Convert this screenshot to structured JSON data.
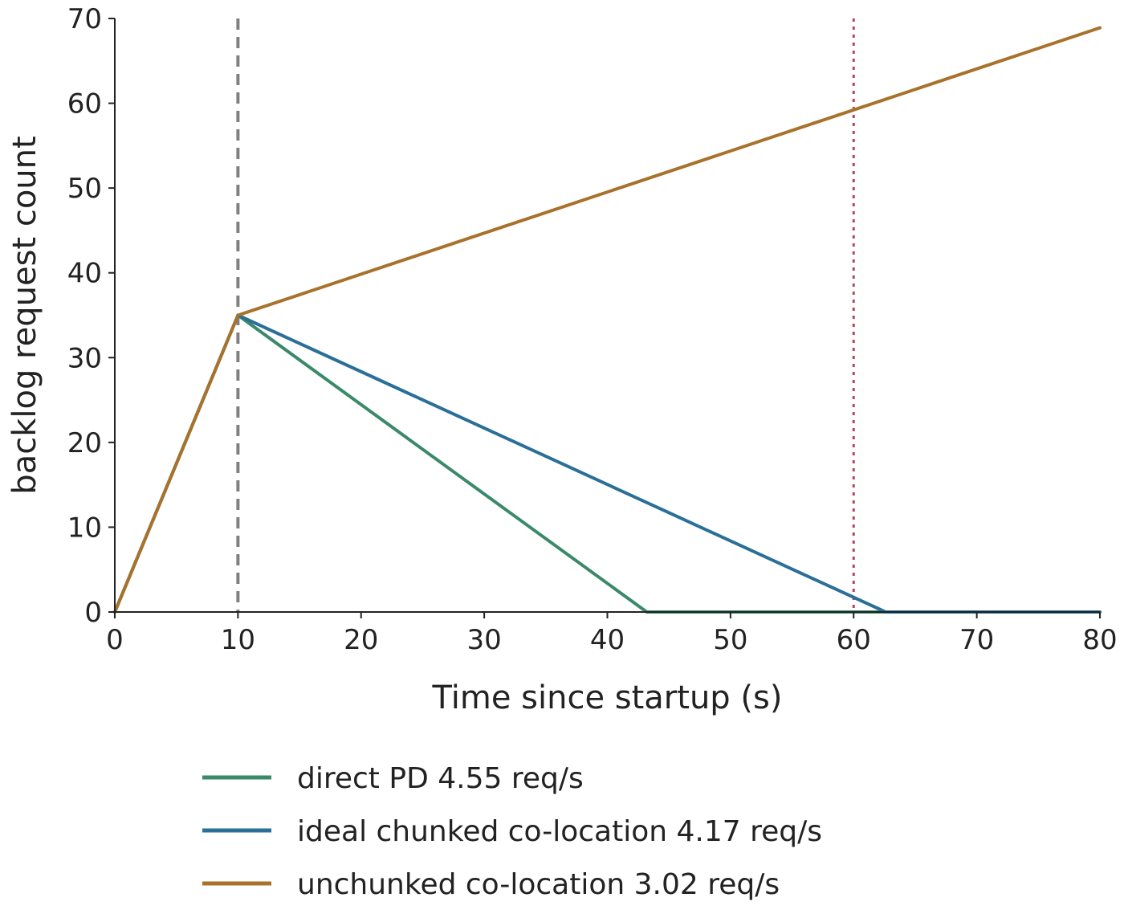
{
  "chart_data": {
    "type": "line",
    "title": "",
    "xlabel": "Time since startup (s)",
    "ylabel": "backlog request count",
    "xlim": [
      0,
      80
    ],
    "ylim": [
      0,
      70
    ],
    "xticks": [
      0,
      10,
      20,
      30,
      40,
      50,
      60,
      70,
      80
    ],
    "yticks": [
      0,
      10,
      20,
      30,
      40,
      50,
      60,
      70
    ],
    "grid": false,
    "legend_position": "bottom",
    "vlines": [
      {
        "x": 10,
        "style": "dashed",
        "color": "#808080"
      },
      {
        "x": 60,
        "style": "dotted",
        "color": "#b5485d"
      }
    ],
    "series": [
      {
        "name": "direct PD 4.55 req/s",
        "color": "#3a8a6a",
        "points": [
          [
            0,
            0
          ],
          [
            10,
            35
          ],
          [
            43.2,
            0
          ],
          [
            80,
            0
          ]
        ]
      },
      {
        "name": "ideal chunked co-location 4.17 req/s",
        "color": "#2a6f97",
        "points": [
          [
            0,
            0
          ],
          [
            10,
            35
          ],
          [
            62.6,
            0
          ],
          [
            80,
            0
          ]
        ]
      },
      {
        "name": "unchunked co-location 3.02 req/s",
        "color": "#a8722b",
        "points": [
          [
            0,
            0
          ],
          [
            10,
            35
          ],
          [
            80,
            68.9
          ]
        ]
      }
    ]
  }
}
